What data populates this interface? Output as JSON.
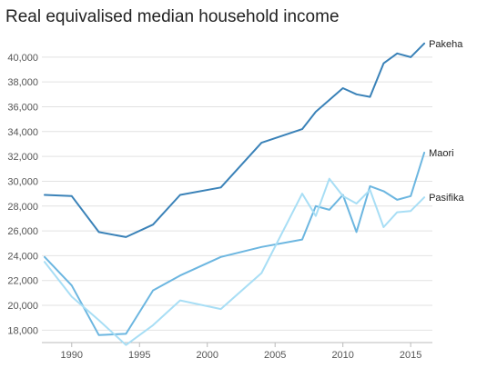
{
  "chart_data": {
    "type": "line",
    "title": "Real equivalised median household income",
    "xlabel": "",
    "ylabel": "",
    "xlim": [
      1987.8,
      2016.6
    ],
    "ylim": [
      17000,
      41600
    ],
    "x_ticks": [
      1990,
      1995,
      2000,
      2005,
      2010,
      2015
    ],
    "y_ticks": [
      18000,
      20000,
      22000,
      24000,
      26000,
      28000,
      30000,
      32000,
      34000,
      36000,
      38000,
      40000
    ],
    "grid": "horizontal",
    "legend": "end-of-line labels",
    "series": [
      {
        "name": "Pakeha",
        "color": "#3a82b8",
        "x": [
          1988,
          1990,
          1992,
          1994,
          1996,
          1998,
          2001,
          2004,
          2007,
          2008,
          2010,
          2011,
          2012,
          2013,
          2014,
          2015,
          2016
        ],
        "y": [
          28900,
          28800,
          25900,
          25500,
          26500,
          28900,
          29500,
          33100,
          34200,
          35600,
          37500,
          37000,
          36800,
          39500,
          40300,
          40000,
          41100
        ]
      },
      {
        "name": "Maori",
        "color": "#6cb6e0",
        "x": [
          1988,
          1990,
          1992,
          1994,
          1996,
          1998,
          2001,
          2004,
          2007,
          2008,
          2009,
          2010,
          2011,
          2012,
          2013,
          2014,
          2015,
          2016
        ],
        "y": [
          23900,
          21600,
          17600,
          17700,
          21200,
          22400,
          23900,
          24700,
          25300,
          28000,
          27700,
          28900,
          25900,
          29600,
          29200,
          28500,
          28800,
          32300
        ]
      },
      {
        "name": "Pasifika",
        "color": "#a8def5",
        "x": [
          1988,
          1990,
          1992,
          1994,
          1996,
          1998,
          2001,
          2004,
          2007,
          2008,
          2009,
          2010,
          2011,
          2012,
          2013,
          2014,
          2015,
          2016
        ],
        "y": [
          23500,
          20700,
          18800,
          16800,
          18400,
          20400,
          19700,
          22600,
          29000,
          27200,
          30200,
          28800,
          28200,
          29300,
          26300,
          27500,
          27600,
          28700
        ]
      }
    ]
  },
  "colors": {
    "grid": "#e2e2e2",
    "axis": "#bbbbbb"
  }
}
